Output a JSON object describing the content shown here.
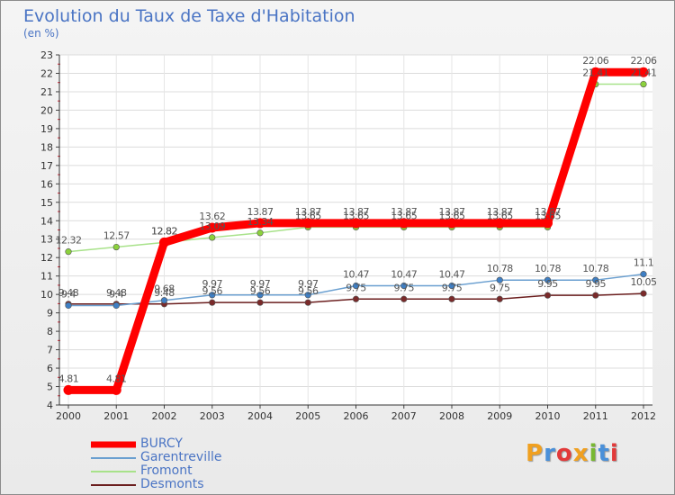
{
  "title": "Evolution du Taux de Taxe d'Habitation",
  "unit": "(en %)",
  "chart_data": {
    "type": "line",
    "title": "Evolution du Taux de Taxe d'Habitation",
    "ylabel": "(en %)",
    "xlabel": "",
    "ylim": [
      4,
      23
    ],
    "x": [
      "2000",
      "2001",
      "2002",
      "2003",
      "2004",
      "2005",
      "2006",
      "2007",
      "2008",
      "2009",
      "2010",
      "2011",
      "2012"
    ],
    "yticks": [
      4,
      5,
      6,
      7,
      8,
      9,
      10,
      11,
      12,
      13,
      14,
      15,
      16,
      17,
      18,
      19,
      20,
      21,
      22,
      23
    ],
    "grid": true,
    "legend_position": "bottom-left",
    "series": [
      {
        "name": "Desmonts",
        "color": "#6b1e1e",
        "marker": "#7a2a2a",
        "values": [
          9.48,
          9.48,
          9.48,
          9.56,
          9.56,
          9.56,
          9.75,
          9.75,
          9.75,
          9.75,
          9.95,
          9.95,
          10.05
        ],
        "labels": [
          "9.48",
          "9.48",
          "9.48",
          "9.56",
          "9.56",
          "9.56",
          "9.75",
          "9.75",
          "9.75",
          "9.75",
          "9.95",
          "9.95",
          "10.05"
        ]
      },
      {
        "name": "Garentreville",
        "color": "#6a9fd0",
        "marker": "#3f7fc4",
        "values": [
          9.4,
          9.4,
          9.68,
          9.97,
          9.97,
          9.97,
          10.47,
          10.47,
          10.47,
          10.78,
          10.78,
          10.78,
          11.1
        ],
        "labels": [
          "9.4",
          "9.4",
          "9.68",
          "9.97",
          "9.97",
          "9.97",
          "10.47",
          "10.47",
          "10.47",
          "10.78",
          "10.78",
          "10.78",
          "11.1"
        ]
      },
      {
        "name": "Fromont",
        "color": "#a8e28a",
        "marker": "#8bd13c",
        "values": [
          12.32,
          12.57,
          12.82,
          13.09,
          13.34,
          13.65,
          13.65,
          13.65,
          13.65,
          13.65,
          13.65,
          21.41,
          21.41
        ],
        "labels": [
          "12.32",
          "12.57",
          "12.82",
          "13.09",
          "13.34",
          "13.65",
          "13.65",
          "13.65",
          "13.65",
          "13.65",
          "13.65",
          "21.41",
          "21.41"
        ]
      },
      {
        "name": "BURCY",
        "color": "#ff0000",
        "marker": "#ff0000",
        "values": [
          4.81,
          4.81,
          12.82,
          13.62,
          13.87,
          13.87,
          13.87,
          13.87,
          13.87,
          13.87,
          13.87,
          22.06,
          22.06
        ],
        "labels": [
          "4.81",
          "4.81",
          "12.82",
          "13.62",
          "13.87",
          "13.87",
          "13.87",
          "13.87",
          "13.87",
          "13.87",
          "13.87",
          "22.06",
          "22.06"
        ]
      }
    ]
  },
  "legend": [
    {
      "name": "BURCY",
      "color": "#ff0000"
    },
    {
      "name": "Garentreville",
      "color": "#6a9fd0"
    },
    {
      "name": "Fromont",
      "color": "#a8e28a"
    },
    {
      "name": "Desmonts",
      "color": "#6b1e1e"
    }
  ],
  "logo": {
    "text": "Proxiti",
    "letters": [
      "P",
      "r",
      "o",
      "x",
      "i",
      "t",
      "i"
    ],
    "colors": [
      "#f0a020",
      "#4a90d9",
      "#e23a3a",
      "#f0a020",
      "#78b832",
      "#4a90d9",
      "#e23a3a"
    ]
  }
}
